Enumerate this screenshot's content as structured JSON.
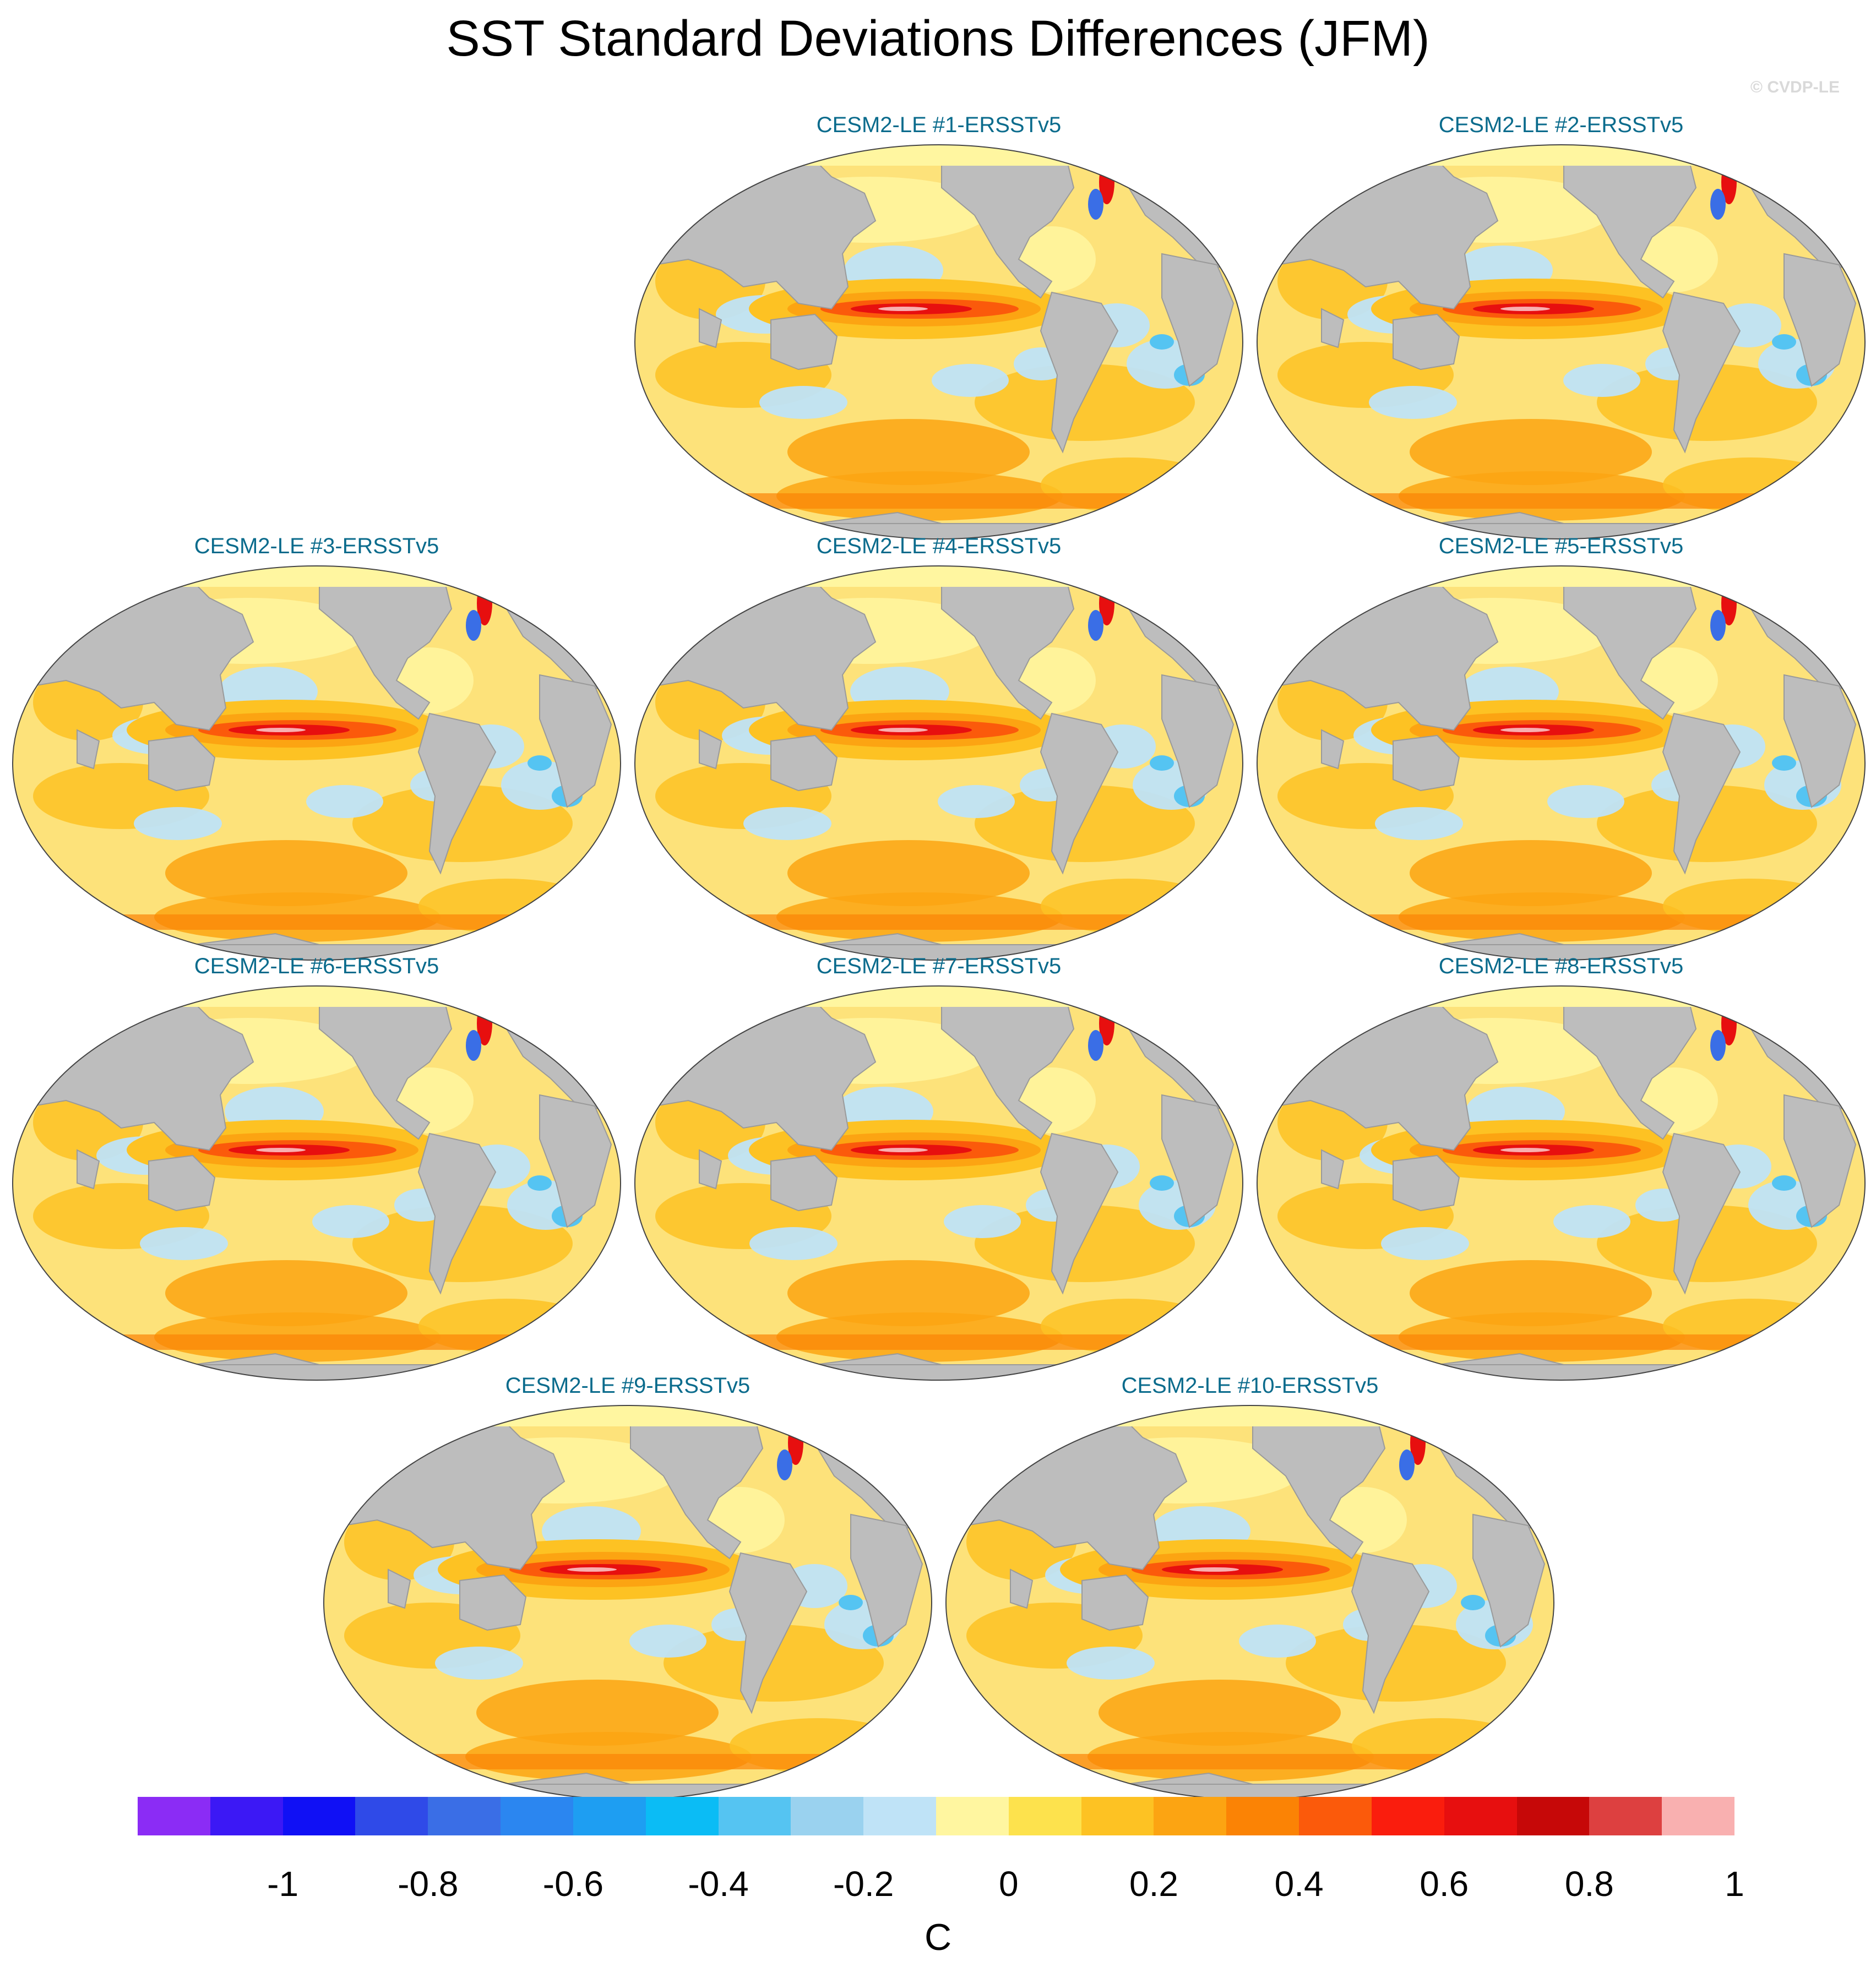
{
  "title": "SST Standard Deviations Differences (JFM)",
  "credit": "© CVDP-LE",
  "panels": [
    {
      "label": "CESM2-LE #1-ERSSTv5"
    },
    {
      "label": "CESM2-LE #2-ERSSTv5"
    },
    {
      "label": "CESM2-LE #3-ERSSTv5"
    },
    {
      "label": "CESM2-LE #4-ERSSTv5"
    },
    {
      "label": "CESM2-LE #5-ERSSTv5"
    },
    {
      "label": "CESM2-LE #6-ERSSTv5"
    },
    {
      "label": "CESM2-LE #7-ERSSTv5"
    },
    {
      "label": "CESM2-LE #8-ERSSTv5"
    },
    {
      "label": "CESM2-LE #9-ERSSTv5"
    },
    {
      "label": "CESM2-LE #10-ERSSTv5"
    }
  ],
  "colorbar": {
    "unit": "C",
    "tick_labels": [
      "-1",
      "-0.8",
      "-0.6",
      "-0.4",
      "-0.2",
      "0",
      "0.2",
      "0.4",
      "0.6",
      "0.8",
      "1"
    ],
    "colors": [
      "#8b2cf5",
      "#3c18f5",
      "#1010f5",
      "#2f4ae8",
      "#3a6ee6",
      "#2b86f0",
      "#1e9ef2",
      "#0bbcf5",
      "#55c4f2",
      "#9ad2ef",
      "#bfe3f7",
      "#fff6a0",
      "#fde24d",
      "#fdc223",
      "#fca412",
      "#fb8305",
      "#fb5a0b",
      "#fa1d0d",
      "#e70f0f",
      "#c60808",
      "#dd4040",
      "#f9b0b0"
    ]
  }
}
